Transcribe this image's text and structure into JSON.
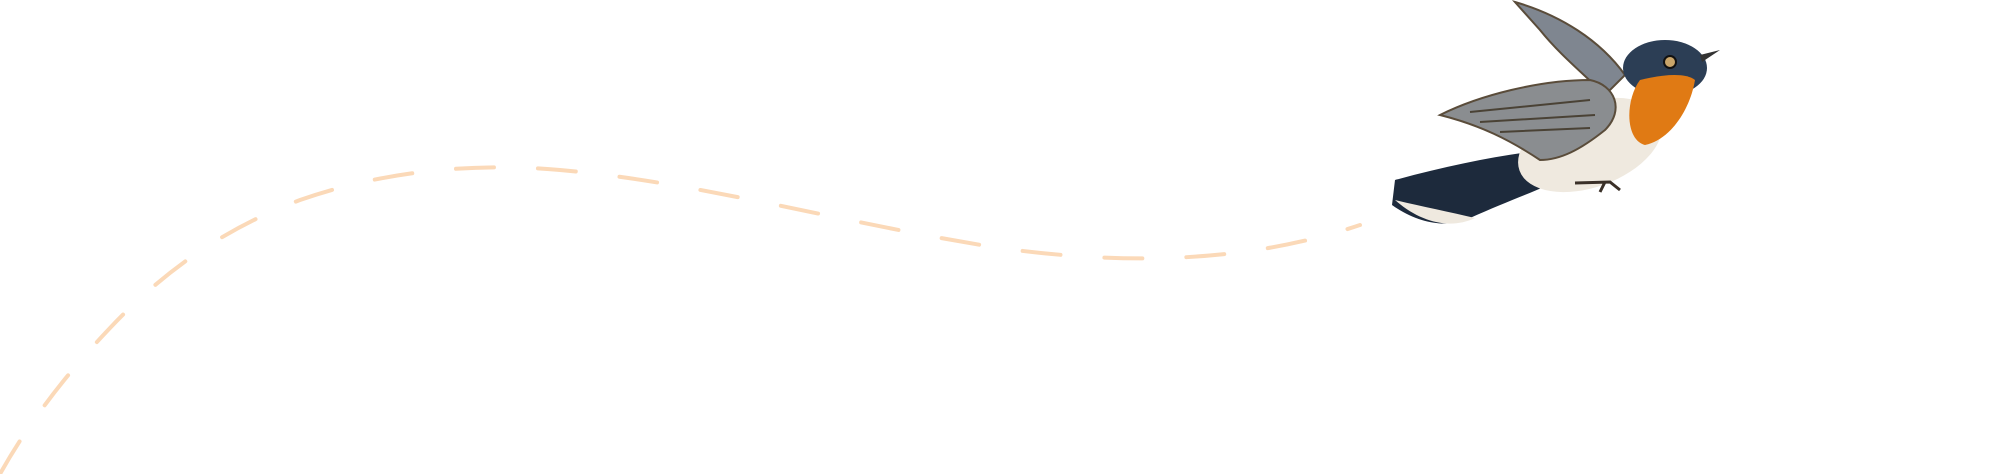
{
  "illustration": {
    "subject": "bird-in-flight",
    "colors": {
      "background": "#ffffff",
      "flight_path": "#fbd9b8",
      "bird_head": "#2c3e55",
      "bird_throat": "#e07a14",
      "bird_belly": "#efe9df",
      "bird_wing": "#8a8d90",
      "bird_tail": "#1d2a3c"
    }
  }
}
